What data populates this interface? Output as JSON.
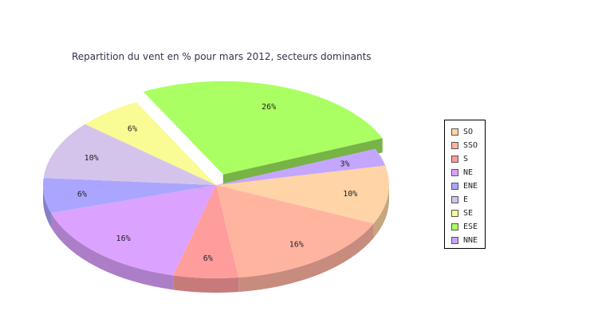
{
  "chart_data": {
    "type": "pie",
    "title": "Repartition du vent en % pour mars 2012, secteurs dominants",
    "labels": [
      "SO",
      "SSO",
      "S",
      "NE",
      "ENE",
      "E",
      "SE",
      "ESE",
      "NNE"
    ],
    "value_labels": [
      "10%",
      "16%",
      "6%",
      "16%",
      "6%",
      "10%",
      "6%",
      "26%",
      "3%"
    ],
    "values": [
      10,
      16,
      6,
      16,
      6,
      10,
      6,
      26,
      3
    ],
    "colors": [
      "#ffd4a6",
      "#ffb4a0",
      "#ff9c9c",
      "#dca2ff",
      "#aaa6ff",
      "#d4c4ec",
      "#f9fb94",
      "#aaff62",
      "#c4a6ff"
    ],
    "exploded": [
      "ESE"
    ],
    "legend_position": "right",
    "style": "3d"
  }
}
